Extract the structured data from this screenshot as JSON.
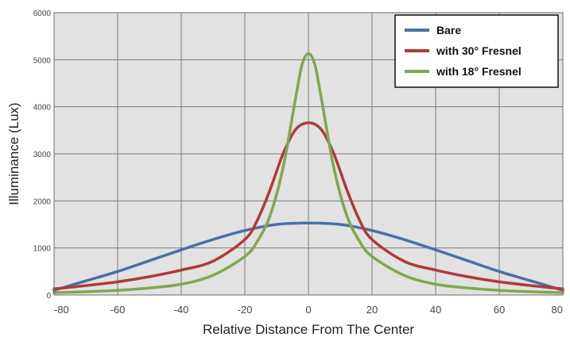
{
  "chart_data": {
    "type": "line",
    "xlabel": "Relative Distance From The Center",
    "ylabel": "Illuminance (Lux)",
    "xlim": [
      -80,
      80
    ],
    "ylim": [
      0,
      6000
    ],
    "x_ticks": [
      -80,
      -60,
      -40,
      -20,
      0,
      20,
      40,
      60,
      80
    ],
    "y_ticks": [
      0,
      1000,
      2000,
      3000,
      4000,
      5000,
      6000
    ],
    "grid": true,
    "legend_position": "top-right",
    "background_color": "#e2e2e2",
    "grid_color": "#7a7a7a",
    "series": [
      {
        "name": "Bare",
        "color": "#4a6fa5",
        "x": [
          -80,
          -70,
          -60,
          -50,
          -40,
          -30,
          -20,
          -10,
          0,
          10,
          20,
          30,
          40,
          50,
          60,
          70,
          80
        ],
        "y": [
          100,
          300,
          500,
          730,
          960,
          1180,
          1370,
          1500,
          1530,
          1500,
          1370,
          1180,
          960,
          730,
          500,
          300,
          100
        ]
      },
      {
        "name": "with 30° Fresnel",
        "color": "#b03a3a",
        "x": [
          -80,
          -70,
          -60,
          -50,
          -40,
          -30,
          -20,
          -16,
          -12,
          -8,
          -4,
          0,
          4,
          8,
          12,
          16,
          20,
          30,
          40,
          50,
          60,
          70,
          80
        ],
        "y": [
          130,
          200,
          280,
          390,
          530,
          720,
          1180,
          1600,
          2250,
          3000,
          3520,
          3660,
          3520,
          3000,
          2250,
          1600,
          1180,
          720,
          530,
          390,
          280,
          200,
          130
        ]
      },
      {
        "name": "with 18° Fresnel",
        "color": "#7ea84e",
        "x": [
          -80,
          -70,
          -60,
          -50,
          -40,
          -30,
          -20,
          -16,
          -12,
          -8,
          -4,
          -2,
          0,
          2,
          4,
          8,
          12,
          16,
          20,
          30,
          40,
          50,
          60,
          70,
          80
        ],
        "y": [
          50,
          70,
          100,
          150,
          230,
          420,
          820,
          1150,
          1700,
          2700,
          4200,
          4900,
          5130,
          4900,
          4200,
          2700,
          1700,
          1150,
          820,
          420,
          230,
          150,
          100,
          70,
          50
        ]
      }
    ]
  }
}
